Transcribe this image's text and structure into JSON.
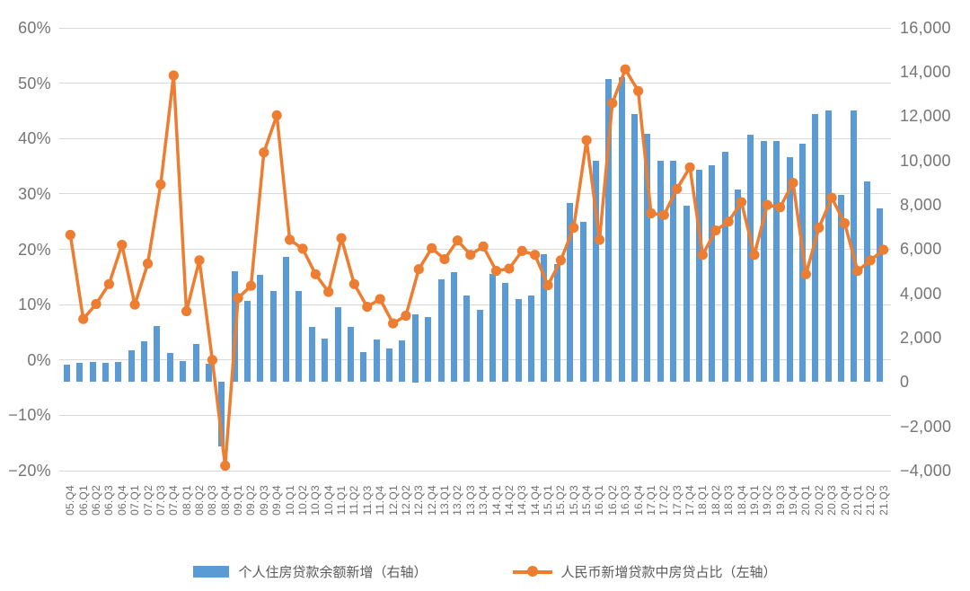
{
  "chart_data": {
    "type": "bar+line combo",
    "categories": [
      "05.Q4",
      "06.Q1",
      "06.Q2",
      "06.Q3",
      "06.Q4",
      "07.Q1",
      "07.Q2",
      "07.Q3",
      "07.Q4",
      "08.Q1",
      "08.Q2",
      "08.Q3",
      "08.Q4",
      "09.Q1",
      "09.Q2",
      "09.Q3",
      "09.Q4",
      "10.Q1",
      "10.Q2",
      "10.Q3",
      "10.Q4",
      "11.Q1",
      "11.Q2",
      "11.Q3",
      "11.Q4",
      "12.Q1",
      "12.Q2",
      "12.Q3",
      "12.Q4",
      "13.Q1",
      "13.Q2",
      "13.Q3",
      "13.Q4",
      "14.Q1",
      "14.Q2",
      "14.Q3",
      "14.Q4",
      "15.Q1",
      "15.Q2",
      "15.Q3",
      "15.Q4",
      "16.Q1",
      "16.Q2",
      "16.Q3",
      "16.Q4",
      "17.Q1",
      "17.Q2",
      "17.Q3",
      "17.Q4",
      "18.Q1",
      "18.Q2",
      "18.Q3",
      "18.Q4",
      "19.Q1",
      "19.Q2",
      "19.Q3",
      "19.Q4",
      "20.Q1",
      "20.Q2",
      "20.Q3",
      "20.Q4",
      "21.Q1",
      "21.Q2",
      "21.Q3"
    ],
    "series": [
      {
        "name": "个人住房贷款余额新增（右轴）",
        "type": "bar",
        "axis": "right",
        "color": "#5b9bd5",
        "values": [
          780,
          890,
          930,
          850,
          930,
          1430,
          1840,
          2540,
          1320,
          960,
          1730,
          820,
          -2900,
          5010,
          3660,
          4840,
          4110,
          5650,
          4110,
          2510,
          1950,
          3390,
          2510,
          1360,
          1930,
          1530,
          1880,
          3080,
          2950,
          4640,
          4950,
          3930,
          3260,
          4900,
          4470,
          3730,
          3930,
          5780,
          5330,
          8080,
          7250,
          9980,
          13670,
          13760,
          12090,
          11230,
          9980,
          9980,
          7950,
          9570,
          9790,
          10380,
          8700,
          11170,
          10870,
          10870,
          10150,
          10760,
          12090,
          12270,
          8460,
          12270,
          9070,
          7850
        ]
      },
      {
        "name": "人民币新增贷款中房贷占比（左轴）",
        "type": "line",
        "axis": "left",
        "color": "#ed7d31",
        "values": [
          22.6,
          7.4,
          10.1,
          13.7,
          20.8,
          10.0,
          17.4,
          31.7,
          51.4,
          8.8,
          18.0,
          0.0,
          -19.1,
          11.2,
          13.4,
          37.5,
          44.2,
          21.7,
          20.1,
          15.5,
          12.3,
          22.0,
          13.7,
          9.6,
          11.0,
          6.6,
          8.0,
          16.4,
          20.2,
          18.2,
          21.6,
          19.0,
          20.5,
          16.1,
          16.5,
          19.7,
          19.0,
          13.5,
          18.0,
          23.9,
          39.7,
          21.7,
          46.4,
          52.5,
          48.6,
          26.5,
          26.2,
          30.9,
          34.8,
          19.0,
          23.4,
          25.0,
          28.5,
          19.0,
          28.0,
          27.6,
          32.0,
          15.5,
          23.9,
          29.3,
          24.7,
          16.1,
          18.0,
          19.9
        ]
      }
    ],
    "left_axis": {
      "unit": "%",
      "min": -20,
      "max": 60,
      "ticks": [
        {
          "value": 60,
          "label": "60%"
        },
        {
          "value": 50,
          "label": "50%"
        },
        {
          "value": 40,
          "label": "40%"
        },
        {
          "value": 30,
          "label": "30%"
        },
        {
          "value": 20,
          "label": "20%"
        },
        {
          "value": 10,
          "label": "10%"
        },
        {
          "value": 0,
          "label": "0%"
        },
        {
          "value": -10,
          "label": "−10%"
        },
        {
          "value": -20,
          "label": "−20%"
        }
      ]
    },
    "right_axis": {
      "min": -4000,
      "max": 16000,
      "ticks": [
        {
          "value": 16000,
          "label": "16,000"
        },
        {
          "value": 14000,
          "label": "14,000"
        },
        {
          "value": 12000,
          "label": "12,000"
        },
        {
          "value": 10000,
          "label": "10,000"
        },
        {
          "value": 8000,
          "label": "8,000"
        },
        {
          "value": 6000,
          "label": "6,000"
        },
        {
          "value": 4000,
          "label": "4,000"
        },
        {
          "value": 2000,
          "label": "2,000"
        },
        {
          "value": 0,
          "label": "0"
        },
        {
          "value": -2000,
          "label": "−2,000"
        },
        {
          "value": -4000,
          "label": "−4,000"
        }
      ]
    },
    "grid": true,
    "gridline_color": "#d9d9d9",
    "legend_position": "bottom"
  }
}
